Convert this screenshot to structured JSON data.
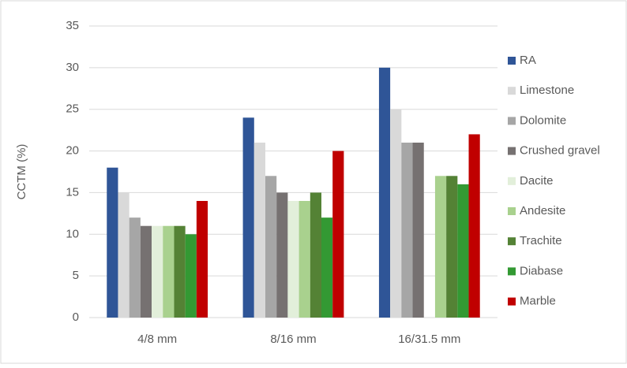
{
  "chart_data": {
    "type": "bar",
    "ylabel": "CCTM (%)",
    "categories": [
      "4/8 mm",
      "8/16 mm",
      "16/31.5 mm"
    ],
    "series": [
      {
        "name": "RA",
        "color": "#2f5597",
        "values": [
          18,
          24,
          30
        ]
      },
      {
        "name": "Limestone",
        "color": "#d9d9d9",
        "values": [
          15,
          21,
          25
        ]
      },
      {
        "name": "Dolomite",
        "color": "#a6a6a6",
        "values": [
          12,
          17,
          21
        ]
      },
      {
        "name": "Crushed gravel",
        "color": "#767171",
        "values": [
          11,
          15,
          21
        ]
      },
      {
        "name": "Dacite",
        "color": "#e2efda",
        "values": [
          11,
          14,
          null
        ]
      },
      {
        "name": "Andesite",
        "color": "#a9d18e",
        "values": [
          11,
          14,
          17
        ]
      },
      {
        "name": "Trachite",
        "color": "#548235",
        "values": [
          11,
          15,
          17
        ]
      },
      {
        "name": "Diabase",
        "color": "#339933",
        "values": [
          10,
          12,
          16
        ]
      },
      {
        "name": "Marble",
        "color": "#c00000",
        "values": [
          14,
          20,
          22
        ]
      }
    ],
    "ylim": [
      0,
      35
    ],
    "yticks": [
      0,
      5,
      10,
      15,
      20,
      25,
      30,
      35
    ],
    "grid": true,
    "legend": "right"
  }
}
